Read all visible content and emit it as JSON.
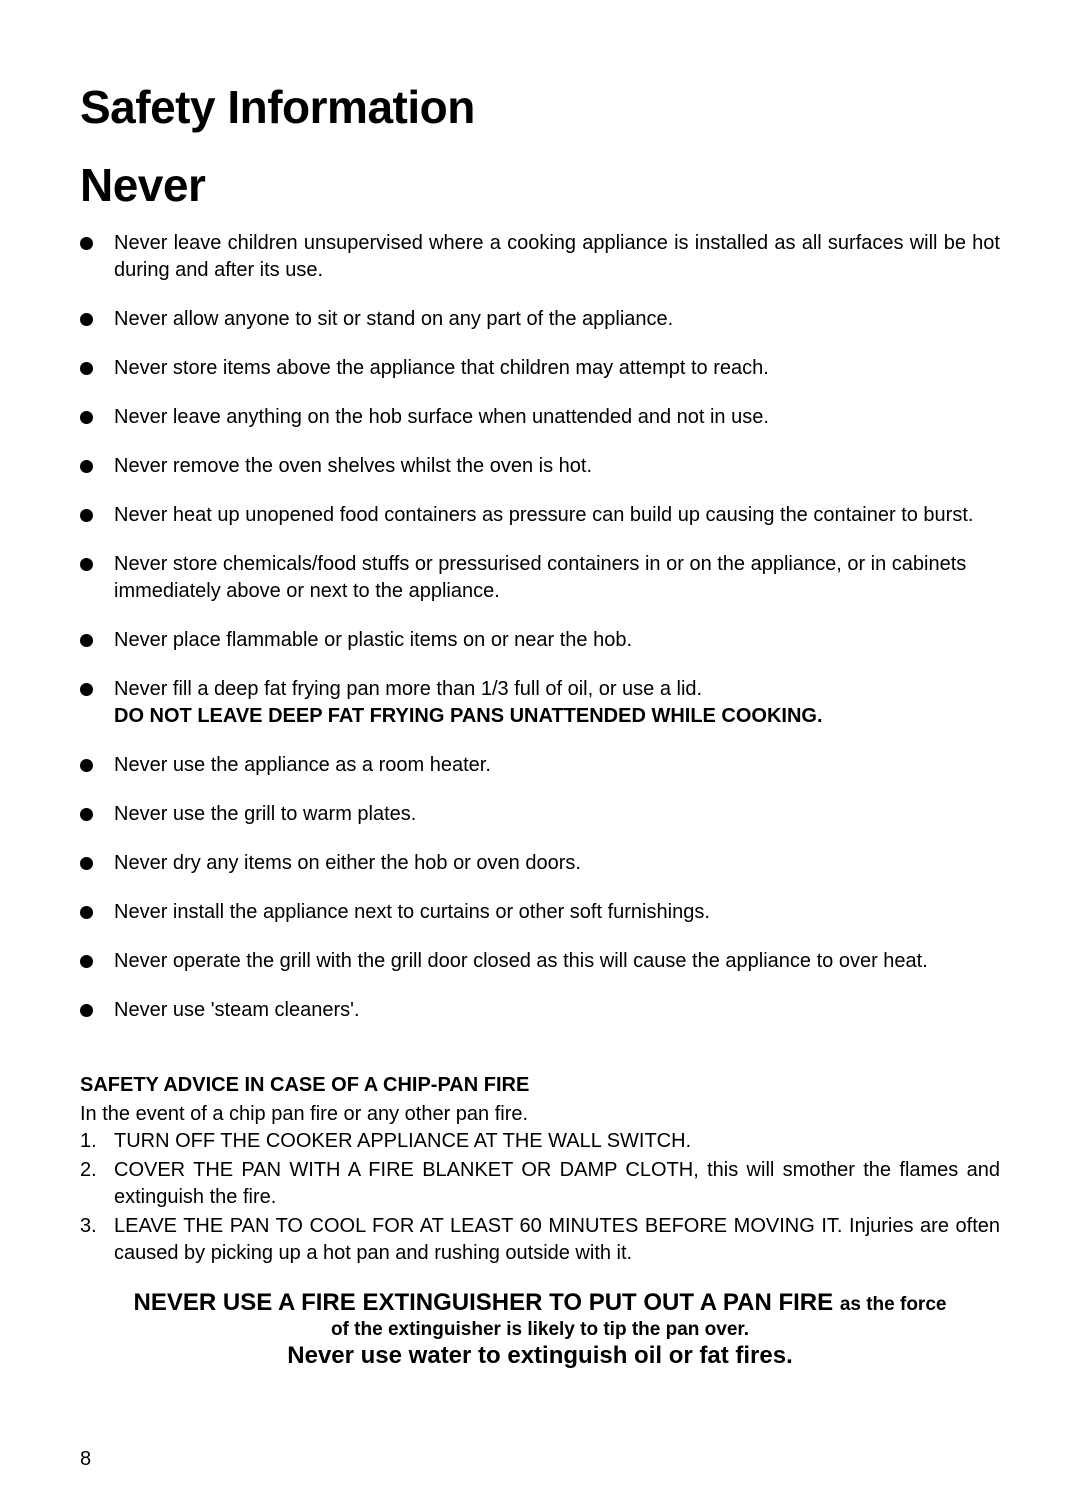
{
  "title": "Safety Information",
  "subtitle": "Never",
  "bullets": [
    {
      "text": "Never leave children unsupervised where a cooking appliance is installed as all surfaces will be hot during and after its use.",
      "justify": true
    },
    {
      "text": "Never allow anyone to sit or stand on any part of the appliance."
    },
    {
      "text": "Never store items above the appliance that children may attempt to reach."
    },
    {
      "text": "Never leave anything on the hob surface when unattended and not in use."
    },
    {
      "text": "Never remove the oven shelves whilst the oven is hot."
    },
    {
      "text": "Never heat up unopened food containers as pressure can build up causing the container to burst.",
      "justify": true
    },
    {
      "text": "Never store chemicals/food stuffs or pressurised containers in or on the appliance, or in cabinets immediately above or next to the appliance."
    },
    {
      "text": "Never place flammable or plastic items on or near the hob."
    },
    {
      "text": "Never fill a deep fat frying pan more than 1/3 full of oil, or use a lid.",
      "bold_addendum": "DO NOT LEAVE DEEP FAT FRYING PANS UNATTENDED WHILE COOKING."
    },
    {
      "text": "Never use the appliance as a room heater."
    },
    {
      "text": "Never use the grill to warm plates."
    },
    {
      "text": "Never dry any items on either the hob or oven doors."
    },
    {
      "text": "Never install the appliance next to curtains or other soft furnishings."
    },
    {
      "text": "Never operate the grill with the grill door closed as this will cause the appliance to over heat."
    },
    {
      "text": "Never use 'steam cleaners'."
    }
  ],
  "advice": {
    "heading": "SAFETY ADVICE IN CASE OF A CHIP-PAN FIRE",
    "intro": "In the event of a chip pan fire or any other pan fire.",
    "steps": [
      "TURN OFF THE COOKER APPLIANCE AT THE WALL SWITCH.",
      "COVER THE PAN WITH A FIRE BLANKET OR DAMP CLOTH, this will smother the flames and extinguish the fire.",
      "LEAVE THE PAN TO COOL FOR AT LEAST 60 MINUTES BEFORE MOVING IT. Injuries are often caused by picking up a hot pan and rushing outside with it."
    ]
  },
  "warning": {
    "line1_big": "NEVER USE A FIRE EXTINGUISHER TO PUT OUT A PAN FIRE ",
    "line1_small": "as the force",
    "line2": "of the extinguisher is likely to tip the pan over.",
    "line3": "Never use water to extinguish oil or fat fires."
  },
  "page_number": "8",
  "colors": {
    "background": "#ffffff",
    "text": "#000000",
    "bullet": "#000000"
  },
  "fonts": {
    "title_size": 46,
    "body_size": 20,
    "warning_big_size": 24,
    "warning_small_size": 19
  }
}
